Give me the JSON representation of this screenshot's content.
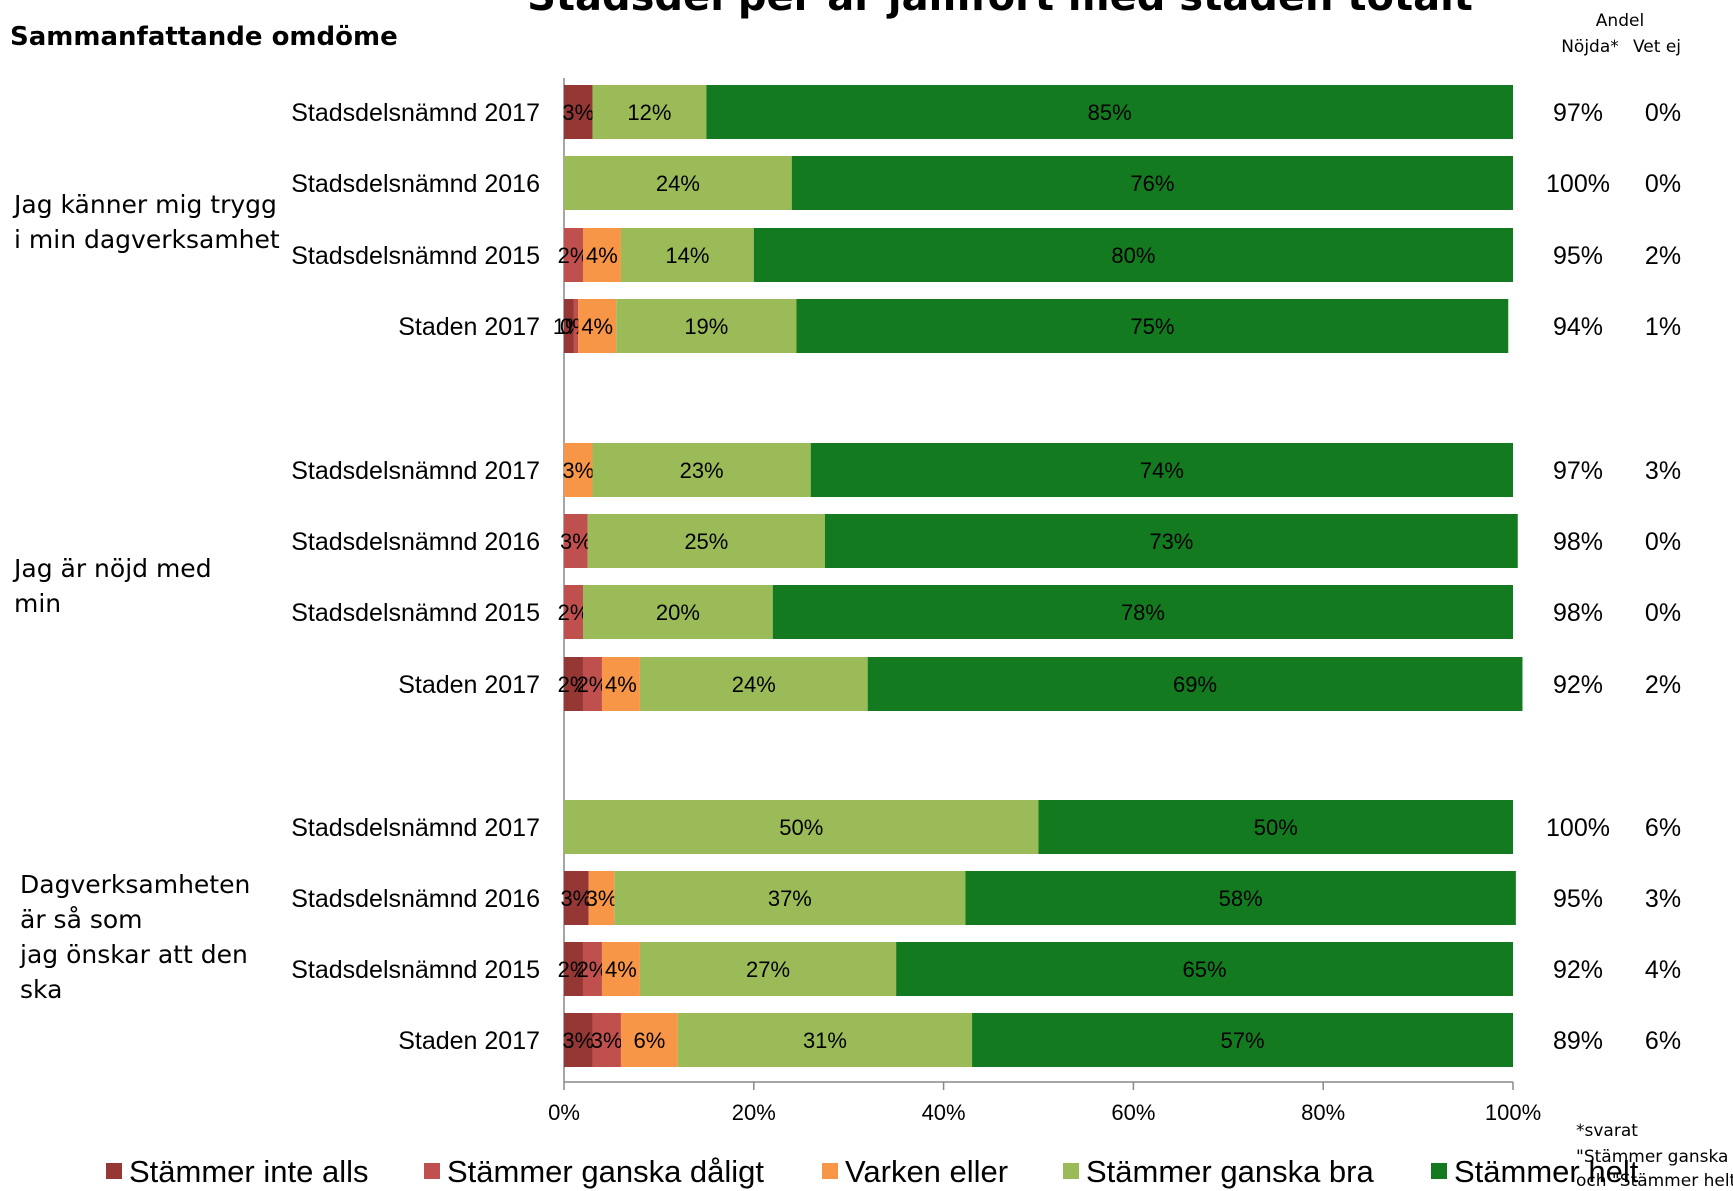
{
  "chart_data": {
    "type": "bar",
    "orientation": "horizontal-stacked-100",
    "title": "Stadsdel per år jämfört med staden totalt",
    "subtitle": "Sammanfattande omdöme",
    "xlim": [
      0,
      100
    ],
    "x_ticks": [
      "0%",
      "20%",
      "40%",
      "60%",
      "80%",
      "100%"
    ],
    "grid": false,
    "legend_position": "bottom",
    "legend": [
      {
        "name": "Stämmer inte alls",
        "color": "#953735"
      },
      {
        "name": "Stämmer ganska dåligt",
        "color": "#c0504d"
      },
      {
        "name": "Varken eller",
        "color": "#f79646"
      },
      {
        "name": "Stämmer ganska bra",
        "color": "#9bbb59"
      },
      {
        "name": "Stämmer helt",
        "color": "#137a1f"
      }
    ],
    "column_header": {
      "group": "Andel",
      "satisfied": "Nöjda*",
      "unknown": "Vet ej"
    },
    "footnote": "*svarat \"Stämmer ganska bra\" och \"Stämmer helt\"",
    "groups": [
      {
        "label": "Jag känner mig trygg i min dagverksamhet",
        "rows": [
          {
            "label": "Stadsdelsnämnd 2017",
            "values": [
              3,
              0,
              0,
              12,
              85
            ],
            "labels": [
              "3%",
              "",
              "",
              "12%",
              "85%"
            ],
            "satisfied": "97%",
            "unknown": "0%"
          },
          {
            "label": "Stadsdelsnämnd 2016",
            "values": [
              0,
              0,
              0,
              24,
              76
            ],
            "labels": [
              "",
              "",
              "",
              "24%",
              "76%"
            ],
            "satisfied": "100%",
            "unknown": "0%"
          },
          {
            "label": "Stadsdelsnämnd 2015",
            "values": [
              0,
              2,
              4,
              14,
              80
            ],
            "labels": [
              "",
              "2%",
              "4%",
              "14%",
              "80%"
            ],
            "satisfied": "95%",
            "unknown": "2%"
          },
          {
            "label": "Staden 2017",
            "values": [
              1,
              0.5,
              4,
              19,
              75
            ],
            "labels": [
              "1%",
              "0%",
              "4%",
              "19%",
              "75%"
            ],
            "satisfied": "94%",
            "unknown": "1%"
          }
        ]
      },
      {
        "label": "Jag är nöjd med min dagverksamhet",
        "rows": [
          {
            "label": "Stadsdelsnämnd 2017",
            "values": [
              0,
              0,
              3,
              23,
              74
            ],
            "labels": [
              "",
              "",
              "3%",
              "23%",
              "74%"
            ],
            "satisfied": "97%",
            "unknown": "3%"
          },
          {
            "label": "Stadsdelsnämnd 2016",
            "values": [
              0,
              2.5,
              0,
              25,
              73
            ],
            "labels": [
              "",
              "3%",
              "",
              "25%",
              "73%"
            ],
            "satisfied": "98%",
            "unknown": "0%"
          },
          {
            "label": "Stadsdelsnämnd 2015",
            "values": [
              0,
              2,
              0,
              20,
              78
            ],
            "labels": [
              "",
              "2%",
              "",
              "20%",
              "78%"
            ],
            "satisfied": "98%",
            "unknown": "0%"
          },
          {
            "label": "Staden 2017",
            "values": [
              2,
              2,
              4,
              24,
              69
            ],
            "labels": [
              "2%",
              "2%",
              "4%",
              "24%",
              "69%"
            ],
            "satisfied": "92%",
            "unknown": "2%"
          }
        ]
      },
      {
        "label": "Dagverksamheten är så som jag önskar att den ska vara",
        "rows": [
          {
            "label": "Stadsdelsnämnd 2017",
            "values": [
              0,
              0,
              0,
              50,
              50
            ],
            "labels": [
              "",
              "",
              "",
              "50%",
              "50%"
            ],
            "satisfied": "100%",
            "unknown": "6%"
          },
          {
            "label": "Stadsdelsnämnd 2016",
            "values": [
              2.6,
              0,
              2.7,
              37,
              58
            ],
            "labels": [
              "3%",
              "",
              "3%",
              "37%",
              "58%"
            ],
            "satisfied": "95%",
            "unknown": "3%"
          },
          {
            "label": "Stadsdelsnämnd 2015",
            "values": [
              2,
              2,
              4,
              27,
              65
            ],
            "labels": [
              "2%",
              "2%",
              "4%",
              "27%",
              "65%"
            ],
            "satisfied": "92%",
            "unknown": "4%"
          },
          {
            "label": "Staden 2017",
            "values": [
              3,
              3,
              6,
              31,
              57
            ],
            "labels": [
              "3%",
              "3%",
              "6%",
              "31%",
              "57%"
            ],
            "satisfied": "89%",
            "unknown": "6%"
          }
        ]
      }
    ]
  }
}
